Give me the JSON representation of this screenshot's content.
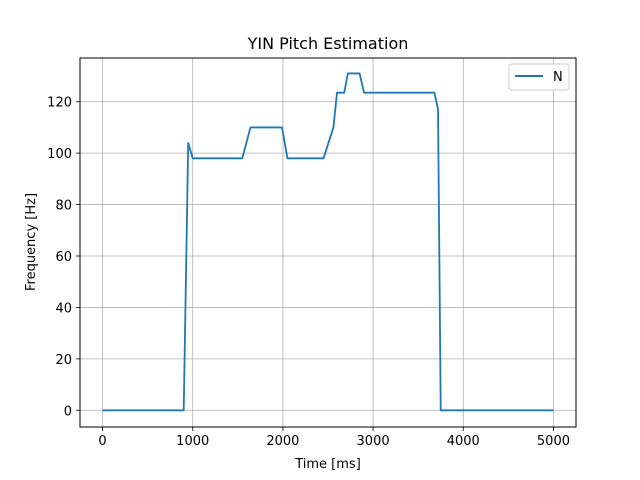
{
  "chart_data": {
    "type": "line",
    "title": "YIN Pitch Estimation",
    "xlabel": "Time [ms]",
    "ylabel": "Frequency [Hz]",
    "xlim": [
      -250,
      5250
    ],
    "ylim": [
      -6.5,
      137
    ],
    "x_ticks": [
      0,
      1000,
      2000,
      3000,
      4000,
      5000
    ],
    "y_ticks": [
      0,
      20,
      40,
      60,
      80,
      100,
      120
    ],
    "grid": true,
    "legend_position": "top-right",
    "series": [
      {
        "name": "N",
        "color": "#1f77b4",
        "x": [
          0,
          900,
          950,
          1000,
          1550,
          1640,
          1990,
          2050,
          2450,
          2560,
          2600,
          2680,
          2720,
          2850,
          2900,
          3680,
          3720,
          3750,
          5000
        ],
        "y": [
          0,
          0,
          104,
          98,
          98,
          110,
          110,
          98,
          98,
          110,
          123.5,
          123.5,
          131,
          131,
          123.5,
          123.5,
          117,
          0,
          0
        ]
      }
    ]
  }
}
